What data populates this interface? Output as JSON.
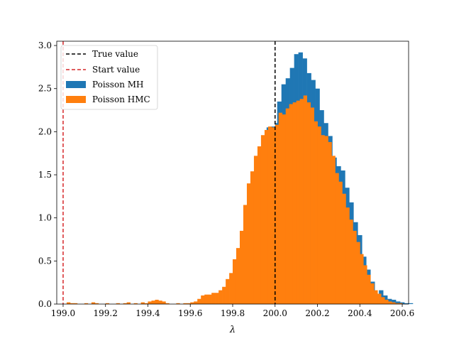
{
  "chart_data": {
    "type": "histogram",
    "title": "",
    "xlabel": "λ",
    "ylabel": "",
    "xlim": [
      198.97,
      200.63
    ],
    "ylim": [
      0,
      3.05
    ],
    "x_ticks": [
      199.0,
      199.2,
      199.4,
      199.6,
      199.8,
      200.0,
      200.2,
      200.4,
      200.6
    ],
    "x_tick_labels": [
      "199.0",
      "199.2",
      "199.4",
      "199.6",
      "199.8",
      "200.0",
      "200.2",
      "200.4",
      "200.6"
    ],
    "y_ticks": [
      0.0,
      0.5,
      1.0,
      1.5,
      2.0,
      2.5,
      3.0
    ],
    "y_tick_labels": [
      "0.0",
      "0.5",
      "1.0",
      "1.5",
      "2.0",
      "2.5",
      "3.0"
    ],
    "grid": false,
    "legend_position": "top-left",
    "reference_lines": [
      {
        "name": "True value",
        "x": 200.0,
        "color": "#000000",
        "style": "dashed"
      },
      {
        "name": "Start value",
        "x": 199.0,
        "color": "#d62728",
        "style": "dashed"
      }
    ],
    "series": [
      {
        "name": "Poisson MH",
        "color": "#1f77b4",
        "bin_width": 0.02,
        "bins": [
          [
            199.78,
            200.01,
            0.02,
            0.08,
            0.18,
            0.35,
            0.62,
            0.98,
            1.4,
            1.72,
            1.95,
            2.05,
            2.06,
            2.1
          ],
          [
            200.01,
            200.03,
            2.35,
            2.55
          ],
          [
            200.05,
            200.07,
            2.62,
            2.74,
            2.9,
            2.92
          ],
          [
            200.13,
            200.15,
            2.85,
            2.68,
            2.6
          ],
          [
            200.19,
            200.21,
            2.5,
            2.25,
            2.1,
            1.95
          ],
          [
            200.27,
            200.29,
            1.7,
            1.6,
            1.55,
            1.35
          ],
          [
            200.35,
            200.37,
            1.18,
            0.95,
            0.8,
            0.55,
            0.4,
            0.26
          ],
          [
            200.49,
            200.51,
            0.16,
            0.1,
            0.06,
            0.05,
            0.03,
            0.02,
            0.01,
            0.01
          ]
        ]
      },
      {
        "name": "Poisson HMC",
        "color": "#ff7f0e",
        "bin_width": 0.0167,
        "bins": [
          [
            199.0,
            199.02,
            0.0,
            0.02,
            0.01,
            0.01,
            0.0,
            0.0,
            0.01,
            0.0,
            0.02,
            0.01,
            0.0,
            0.0
          ],
          [
            199.2,
            199.22,
            0.01,
            0.0,
            0.0,
            0.01,
            0.0,
            0.01,
            0.02,
            0.0,
            0.01,
            0.0,
            0.02,
            0.01
          ],
          [
            199.4,
            199.42,
            0.03,
            0.04,
            0.05,
            0.04,
            0.03,
            0.01,
            0.0,
            0.0,
            0.01,
            0.0,
            0.01,
            0.01
          ],
          [
            199.6,
            199.62,
            0.02,
            0.03,
            0.06,
            0.1,
            0.11,
            0.11,
            0.13,
            0.13,
            0.16,
            0.2,
            0.29,
            0.36
          ],
          [
            199.8,
            199.82,
            0.52,
            0.65,
            0.85,
            1.15,
            1.4,
            1.54,
            1.72,
            1.83,
            1.96,
            2.02,
            2.06,
            2.05
          ],
          [
            200.0,
            200.02,
            2.08,
            2.22,
            2.2,
            2.27,
            2.32,
            2.34,
            2.36,
            2.38,
            2.42,
            2.34,
            2.28,
            2.12
          ],
          [
            200.2,
            200.22,
            2.06,
            1.96,
            1.95,
            1.88,
            1.72,
            1.52,
            1.42,
            1.28,
            1.12,
            0.98,
            0.85,
            0.72
          ],
          [
            200.4,
            200.42,
            0.58,
            0.45,
            0.34,
            0.24,
            0.16,
            0.12,
            0.08,
            0.05,
            0.03,
            0.02,
            0.01,
            0.01
          ]
        ]
      }
    ]
  }
}
